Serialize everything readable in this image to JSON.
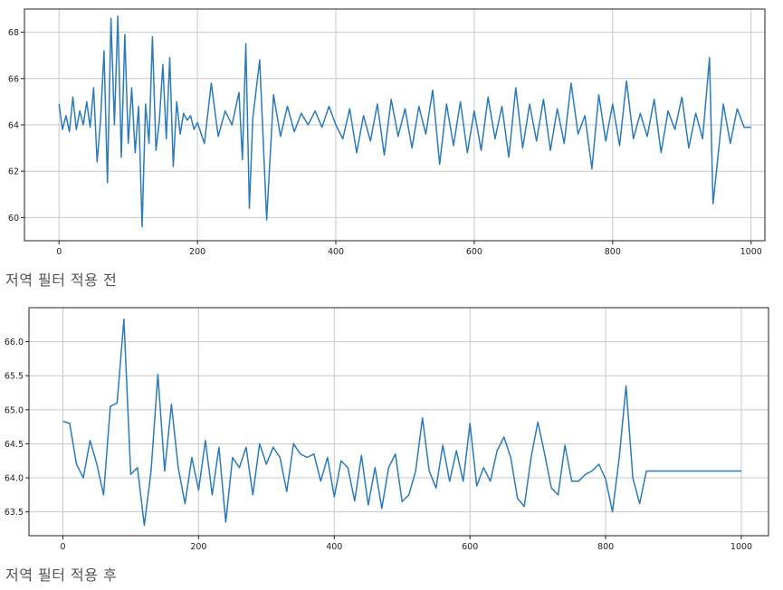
{
  "captions": {
    "before": "저역 필터 적용 전",
    "after": "저역 필터 적용 후"
  },
  "colors": {
    "line": "#2b7bb9",
    "grid": "#c8c8c8",
    "frame": "#222222"
  },
  "chart_data": [
    {
      "type": "line",
      "title": "",
      "xlabel": "",
      "ylabel": "",
      "grid": true,
      "xlim": [
        -50,
        1020
      ],
      "ylim": [
        59,
        69
      ],
      "xticks": [
        0,
        200,
        400,
        600,
        800,
        1000
      ],
      "yticks": [
        60,
        62,
        64,
        66,
        68
      ],
      "series": [
        {
          "x": [
            0,
            5,
            10,
            15,
            20,
            25,
            30,
            35,
            40,
            45,
            50,
            55,
            60,
            65,
            70,
            75,
            80,
            85,
            90,
            95,
            100,
            105,
            110,
            115,
            120,
            125,
            130,
            135,
            140,
            145,
            150,
            155,
            160,
            165,
            170,
            175,
            180,
            185,
            190,
            195,
            200,
            210,
            220,
            230,
            240,
            250,
            260,
            265,
            270,
            275,
            280,
            290,
            300,
            310,
            320,
            330,
            340,
            350,
            360,
            370,
            380,
            390,
            400,
            410,
            420,
            430,
            440,
            450,
            460,
            470,
            480,
            490,
            500,
            510,
            520,
            530,
            540,
            550,
            560,
            570,
            580,
            590,
            600,
            610,
            620,
            630,
            640,
            650,
            660,
            670,
            680,
            690,
            700,
            710,
            720,
            730,
            740,
            750,
            760,
            770,
            780,
            790,
            800,
            810,
            820,
            830,
            840,
            850,
            860,
            870,
            880,
            890,
            900,
            910,
            920,
            930,
            940,
            945,
            950,
            960,
            970,
            980,
            990,
            1000
          ],
          "y": [
            64.9,
            63.8,
            64.4,
            63.7,
            65.2,
            63.8,
            64.6,
            64.0,
            65.0,
            63.9,
            65.6,
            62.4,
            64.2,
            67.2,
            61.5,
            68.6,
            64.0,
            68.7,
            62.6,
            67.9,
            63.2,
            65.6,
            62.8,
            64.8,
            59.6,
            64.9,
            63.2,
            67.8,
            62.9,
            64.2,
            66.6,
            63.4,
            66.9,
            62.2,
            65.0,
            63.6,
            64.5,
            64.2,
            64.4,
            63.8,
            64.1,
            63.2,
            65.8,
            63.5,
            64.6,
            64.0,
            65.4,
            62.5,
            67.5,
            60.4,
            64.3,
            66.8,
            59.9,
            65.3,
            63.5,
            64.8,
            63.7,
            64.5,
            64.0,
            64.6,
            63.9,
            64.8,
            64.0,
            63.4,
            64.7,
            62.8,
            64.4,
            63.3,
            64.9,
            62.7,
            65.1,
            63.5,
            64.7,
            63.0,
            64.8,
            63.6,
            65.5,
            62.3,
            64.9,
            63.1,
            65.0,
            62.8,
            64.6,
            62.9,
            65.2,
            63.4,
            64.8,
            62.6,
            65.6,
            63.0,
            64.9,
            63.3,
            65.1,
            62.9,
            64.7,
            63.2,
            65.8,
            63.6,
            64.4,
            62.1,
            65.3,
            63.3,
            64.9,
            63.1,
            65.9,
            63.4,
            64.5,
            63.5,
            65.1,
            62.8,
            64.6,
            63.8,
            65.2,
            63.0,
            64.5,
            63.4,
            66.9,
            60.6,
            62.0,
            64.9,
            63.2,
            64.7,
            63.9,
            63.9
          ]
        }
      ]
    },
    {
      "type": "line",
      "title": "",
      "xlabel": "",
      "ylabel": "",
      "grid": true,
      "xlim": [
        -50,
        1040
      ],
      "ylim": [
        63.15,
        66.5
      ],
      "xticks": [
        0,
        200,
        400,
        600,
        800,
        1000
      ],
      "yticks": [
        63.5,
        64.0,
        64.5,
        65.0,
        65.5,
        66.0
      ],
      "series": [
        {
          "x": [
            0,
            10,
            20,
            30,
            40,
            50,
            60,
            70,
            80,
            90,
            100,
            110,
            120,
            130,
            140,
            150,
            160,
            170,
            180,
            190,
            200,
            210,
            220,
            230,
            240,
            250,
            260,
            270,
            280,
            290,
            300,
            310,
            320,
            330,
            340,
            350,
            360,
            370,
            380,
            390,
            400,
            410,
            420,
            430,
            440,
            450,
            460,
            470,
            480,
            490,
            500,
            510,
            520,
            530,
            540,
            550,
            560,
            570,
            580,
            590,
            600,
            610,
            620,
            630,
            640,
            650,
            660,
            670,
            680,
            690,
            700,
            710,
            720,
            730,
            740,
            750,
            760,
            770,
            780,
            790,
            800,
            810,
            820,
            830,
            840,
            850,
            860,
            870,
            880,
            890,
            900,
            910,
            920,
            930,
            940,
            950,
            960,
            970,
            980,
            990,
            1000
          ],
          "y": [
            64.83,
            64.8,
            64.2,
            64.0,
            64.55,
            64.2,
            63.75,
            65.05,
            65.1,
            66.33,
            64.05,
            64.15,
            63.3,
            64.1,
            65.52,
            64.1,
            65.08,
            64.15,
            63.62,
            64.3,
            63.82,
            64.55,
            63.75,
            64.45,
            63.35,
            64.3,
            64.15,
            64.45,
            63.75,
            64.5,
            64.2,
            64.45,
            64.3,
            63.8,
            64.5,
            64.35,
            64.3,
            64.35,
            63.95,
            64.3,
            63.72,
            64.25,
            64.15,
            63.66,
            64.33,
            63.6,
            64.15,
            63.55,
            64.15,
            64.35,
            63.65,
            63.75,
            64.1,
            64.88,
            64.1,
            63.85,
            64.48,
            63.95,
            64.4,
            63.95,
            64.8,
            63.88,
            64.15,
            63.95,
            64.4,
            64.6,
            64.3,
            63.7,
            63.58,
            64.3,
            64.82,
            64.35,
            63.85,
            63.75,
            64.48,
            63.95,
            63.95,
            64.05,
            64.1,
            64.2,
            63.98,
            63.5,
            64.3,
            65.35,
            64.0,
            63.62,
            64.1,
            64.1,
            64.1,
            64.1,
            64.1,
            64.1,
            64.1,
            64.1,
            64.1,
            64.1,
            64.1,
            64.1,
            64.1,
            64.1,
            64.1
          ]
        }
      ]
    }
  ]
}
